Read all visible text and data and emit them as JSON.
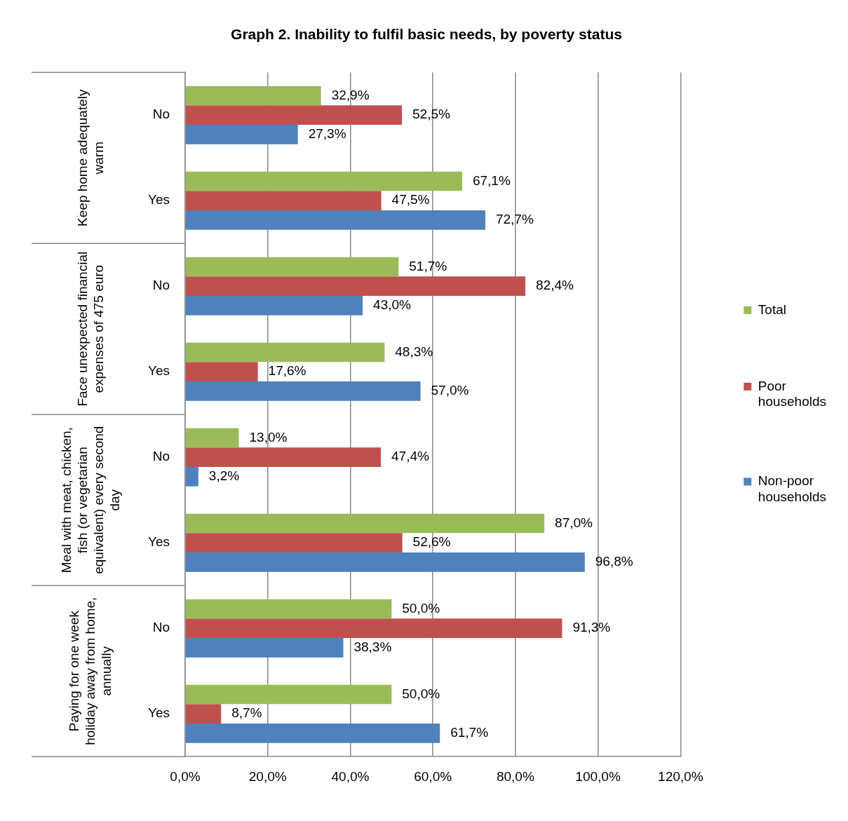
{
  "chart_data": {
    "type": "bar",
    "orientation": "horizontal",
    "title": "Graph 2. Inability to fulfil basic needs, by poverty status",
    "categories": [
      "No",
      "Yes",
      "No",
      "Yes",
      "No",
      "Yes",
      "No",
      "Yes"
    ],
    "annotations": [
      "Keep home adequately warm",
      "Face unexpected financial expenses of 475 euro",
      "Meal with meat, chicken, fish (or vegetarian equivalent) every second day",
      "Paying for one week holiday away from home, annually"
    ],
    "series": [
      {
        "name": "Total",
        "color": "#9bbb59",
        "values": [
          32.9,
          67.1,
          51.7,
          48.3,
          13.0,
          87.0,
          50.0,
          50.0
        ],
        "value_labels": [
          "32,9%",
          "67,1%",
          "51,7%",
          "48,3%",
          "13,0%",
          "87,0%",
          "50,0%",
          "50,0%"
        ]
      },
      {
        "name": "Poor households",
        "color": "#c0504d",
        "values": [
          52.5,
          47.5,
          82.4,
          17.6,
          47.4,
          52.6,
          91.3,
          8.7
        ],
        "value_labels": [
          "52,5%",
          "47,5%",
          "82,4%",
          "17,6%",
          "47,4%",
          "52,6%",
          "91,3%",
          "8,7%"
        ]
      },
      {
        "name": "Non-poor households",
        "color": "#4f81bd",
        "values": [
          27.3,
          72.7,
          43.0,
          57.0,
          3.2,
          96.8,
          38.3,
          61.7
        ],
        "value_labels": [
          "27,3%",
          "72,7%",
          "43,0%",
          "57,0%",
          "3,2%",
          "96,8%",
          "38,3%",
          "61,7%"
        ]
      }
    ],
    "xlim": [
      0,
      120
    ],
    "xticks": [
      {
        "value": 0,
        "label": "0,0%"
      },
      {
        "value": 20,
        "label": "20,0%"
      },
      {
        "value": 40,
        "label": "40,0%"
      },
      {
        "value": 60,
        "label": "60,0%"
      },
      {
        "value": 80,
        "label": "80,0%"
      },
      {
        "value": 100,
        "label": "100,0%"
      },
      {
        "value": 120,
        "label": "120,0%"
      }
    ],
    "grid": "x",
    "legend": "right"
  }
}
